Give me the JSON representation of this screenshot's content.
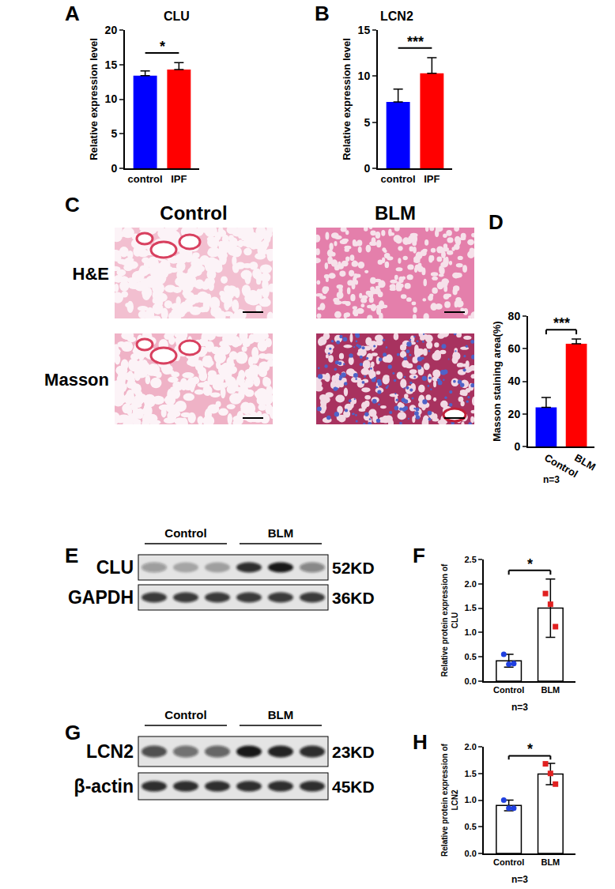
{
  "chart_data": [
    {
      "panel": "A",
      "type": "bar",
      "title": "CLU",
      "categories": [
        "control",
        "IPF"
      ],
      "values": [
        13.4,
        14.3
      ],
      "errors": [
        0.7,
        1.0
      ],
      "colors": [
        "#0000ff",
        "#ff0000"
      ],
      "y_label": "Relative expression level",
      "ylim": [
        0,
        20
      ],
      "yticks": [
        0,
        5,
        10,
        15,
        20
      ],
      "significance": "*"
    },
    {
      "panel": "B",
      "type": "bar",
      "title": "LCN2",
      "categories": [
        "control",
        "IPF"
      ],
      "values": [
        7.2,
        10.3
      ],
      "errors": [
        1.4,
        1.7
      ],
      "colors": [
        "#0000ff",
        "#ff0000"
      ],
      "y_label": "Relative expression level",
      "ylim": [
        0,
        15
      ],
      "yticks": [
        0,
        5,
        10,
        15
      ],
      "significance": "***"
    },
    {
      "panel": "D",
      "type": "bar",
      "categories": [
        "Control",
        "BLM"
      ],
      "values": [
        24,
        63
      ],
      "errors": [
        6,
        3
      ],
      "colors": [
        "#0000ff",
        "#ff0000"
      ],
      "y_label": "Masson staining area(%)",
      "ylim": [
        0,
        80
      ],
      "yticks": [
        0,
        20,
        40,
        60,
        80
      ],
      "significance": "***",
      "note": "n=3"
    },
    {
      "panel": "F",
      "type": "bar",
      "categories": [
        "Control",
        "BLM"
      ],
      "values": [
        0.42,
        1.5
      ],
      "errors": [
        0.13,
        0.6
      ],
      "points": [
        [
          0.55,
          0.35,
          0.36
        ],
        [
          1.8,
          1.58,
          1.12
        ]
      ],
      "colors": [
        "#2040e0",
        "#e02020"
      ],
      "y_label": "Relative protein expression of CLU",
      "ylim": [
        0,
        2.5
      ],
      "yticks": [
        {
          "value": 0,
          "label": "0.0"
        },
        {
          "value": 0.5,
          "label": "0.5"
        },
        {
          "value": 1,
          "label": "1.0"
        },
        {
          "value": 1.5,
          "label": "1.5"
        },
        {
          "value": 2,
          "label": "2.0"
        },
        {
          "value": 2.5,
          "label": "2.5"
        }
      ],
      "significance": "*",
      "note": "n=3"
    },
    {
      "panel": "H",
      "type": "bar",
      "categories": [
        "Control",
        "BLM"
      ],
      "values": [
        0.9,
        1.49
      ],
      "errors": [
        0.1,
        0.2
      ],
      "points": [
        [
          1.0,
          0.85,
          0.85
        ],
        [
          1.68,
          1.5,
          1.3
        ]
      ],
      "colors": [
        "#2040e0",
        "#e02020"
      ],
      "y_label": "Relative protein expression of LCN2",
      "ylim": [
        0,
        2.0
      ],
      "yticks": [
        {
          "value": 0,
          "label": "0.0"
        },
        {
          "value": 0.5,
          "label": "0.5"
        },
        {
          "value": 1,
          "label": "1.0"
        },
        {
          "value": 1.5,
          "label": "1.5"
        },
        {
          "value": 2,
          "label": "2.0"
        }
      ],
      "significance": "*",
      "note": "n=3"
    }
  ],
  "histology": {
    "panel": "C",
    "columns": [
      "Control",
      "BLM"
    ],
    "rows": [
      "H&E",
      "Masson"
    ]
  },
  "western_blots": [
    {
      "panel": "E",
      "groups": [
        "Control",
        "BLM"
      ],
      "bands": [
        {
          "label": "CLU",
          "size": "52KD"
        },
        {
          "label": "GAPDH",
          "size": "36KD"
        }
      ]
    },
    {
      "panel": "G",
      "groups": [
        "Control",
        "BLM"
      ],
      "bands": [
        {
          "label": "LCN2",
          "size": "23KD"
        },
        {
          "label": "β-actin",
          "size": "45KD"
        }
      ]
    }
  ]
}
